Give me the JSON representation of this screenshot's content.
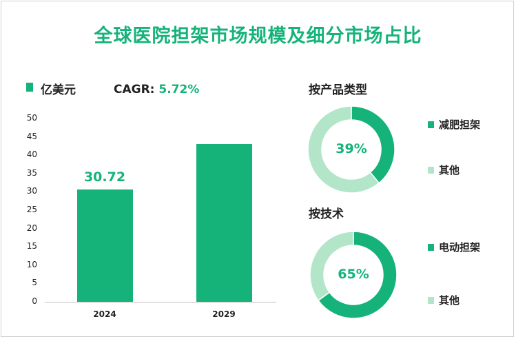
{
  "title": "全球医院担架市场规模及细分市场占比",
  "unit_label": "亿美元",
  "cagr": {
    "label": "CAGR: ",
    "value": "5.72%"
  },
  "colors": {
    "primary": "#15b37a",
    "secondary": "#b3e6c9"
  },
  "chart_data": [
    {
      "type": "bar",
      "categories": [
        "2024",
        "2029"
      ],
      "values": [
        30.72,
        43
      ],
      "data_labels": [
        "30.72",
        ""
      ],
      "ylim": [
        0,
        50
      ],
      "yticks": [
        "0",
        "5",
        "10",
        "15",
        "20",
        "25",
        "30",
        "35",
        "40",
        "45",
        "50"
      ],
      "ylabel": "亿美元",
      "grid": false
    },
    {
      "type": "pie",
      "title": "按产品类型",
      "labels": [
        "减肥担架",
        "其他"
      ],
      "values": [
        39,
        61
      ],
      "center_label": "39%"
    },
    {
      "type": "pie",
      "title": "按技术",
      "labels": [
        "电动担架",
        "其他"
      ],
      "values": [
        65,
        35
      ],
      "center_label": "65%"
    }
  ]
}
